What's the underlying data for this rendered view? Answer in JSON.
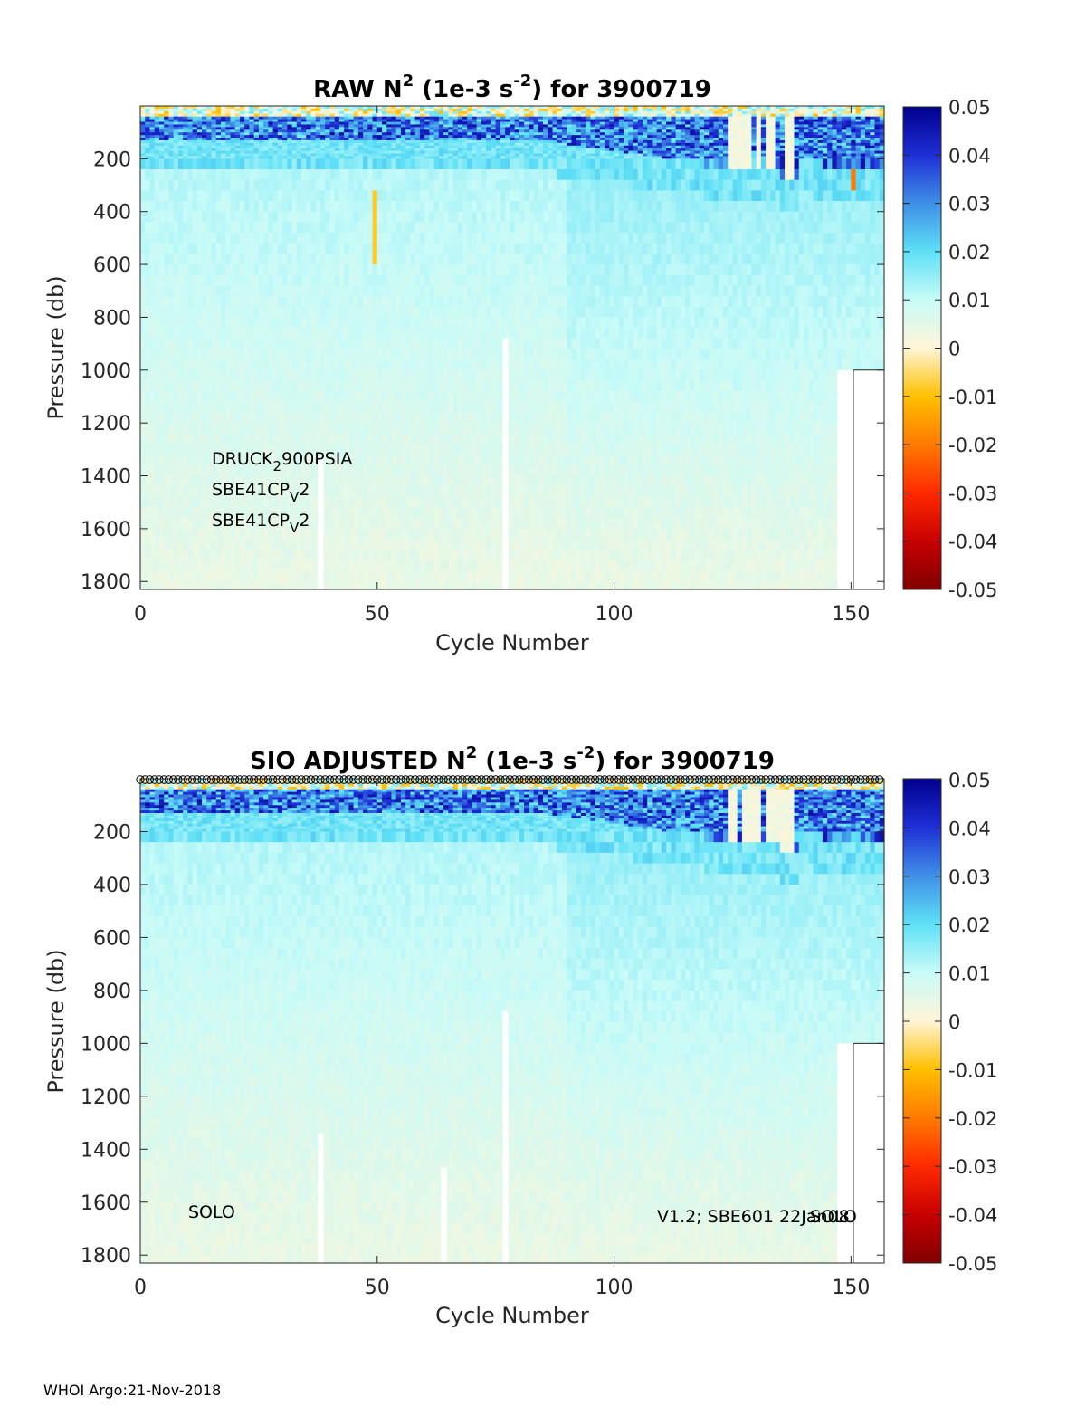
{
  "footer": "WHOI Argo:21-Nov-2018",
  "chart_data": [
    {
      "type": "heatmap",
      "title": {
        "pre": "RAW N",
        "sup1": "2",
        "mid": " (1e-3 s",
        "sup2": "-2",
        "post": ") for 3900719"
      },
      "xlabel": "Cycle Number",
      "ylabel": "Pressure (db)",
      "xlim": [
        0,
        157
      ],
      "ylim": [
        1830,
        0
      ],
      "x_ticks": [
        0,
        50,
        100,
        150
      ],
      "y_ticks": [
        200,
        400,
        600,
        800,
        1000,
        1200,
        1400,
        1600,
        1800
      ],
      "colorbar": {
        "range": [
          -0.05,
          0.05
        ],
        "ticks": [
          "0.05",
          "0.04",
          "0.03",
          "0.02",
          "0.01",
          "0",
          "-0.01",
          "-0.02",
          "-0.03",
          "-0.04",
          "-0.05"
        ],
        "colors": [
          "#800000",
          "#c80000",
          "#ff2a00",
          "#ff7a00",
          "#ffc000",
          "#fff5d8",
          "#c8fbf8",
          "#5ee0f6",
          "#3f8fe6",
          "#1f2fd6",
          "#00008c"
        ]
      },
      "annotations": {
        "sensor1": {
          "base": "DRUCK",
          "sub": "2",
          "rest": "900PSIA"
        },
        "sensor2": {
          "base": "SBE41CP",
          "sub": "V",
          "rest": "2"
        },
        "sensor3": {
          "base": "SBE41CP",
          "sub": "V",
          "rest": "2"
        }
      },
      "gaps": [
        {
          "cycle": 38,
          "from": 1330,
          "to": 1830
        },
        {
          "cycle": 77,
          "from": 880,
          "to": 1830
        }
      ],
      "max_depth_late_cycles": 1000,
      "markers": false
    },
    {
      "type": "heatmap",
      "title": {
        "pre": "SIO  ADJUSTED N",
        "sup1": "2",
        "mid": " (1e-3 s",
        "sup2": "-2",
        "post": ") for 3900719"
      },
      "xlabel": "Cycle Number",
      "ylabel": "Pressure (db)",
      "xlim": [
        0,
        157
      ],
      "ylim": [
        1830,
        0
      ],
      "x_ticks": [
        0,
        50,
        100,
        150
      ],
      "y_ticks": [
        200,
        400,
        600,
        800,
        1000,
        1200,
        1400,
        1600,
        1800
      ],
      "colorbar": {
        "range": [
          -0.05,
          0.05
        ],
        "ticks": [
          "0.05",
          "0.04",
          "0.03",
          "0.02",
          "0.01",
          "0",
          "-0.01",
          "-0.02",
          "-0.03",
          "-0.04",
          "-0.05"
        ],
        "colors": [
          "#800000",
          "#c80000",
          "#ff2a00",
          "#ff7a00",
          "#ffc000",
          "#fff5d8",
          "#c8fbf8",
          "#5ee0f6",
          "#3f8fe6",
          "#1f2fd6",
          "#00008c"
        ]
      },
      "annotations": {
        "left": "SOLO",
        "right": "V1.2; SBE601 22Jan08",
        "right_overlap": "SOLO"
      },
      "gaps": [
        {
          "cycle": 38,
          "from": 1340,
          "to": 1830
        },
        {
          "cycle": 64,
          "from": 1470,
          "to": 1830
        },
        {
          "cycle": 77,
          "from": 880,
          "to": 1830
        }
      ],
      "max_depth_late_cycles": 1000,
      "markers": true
    }
  ]
}
